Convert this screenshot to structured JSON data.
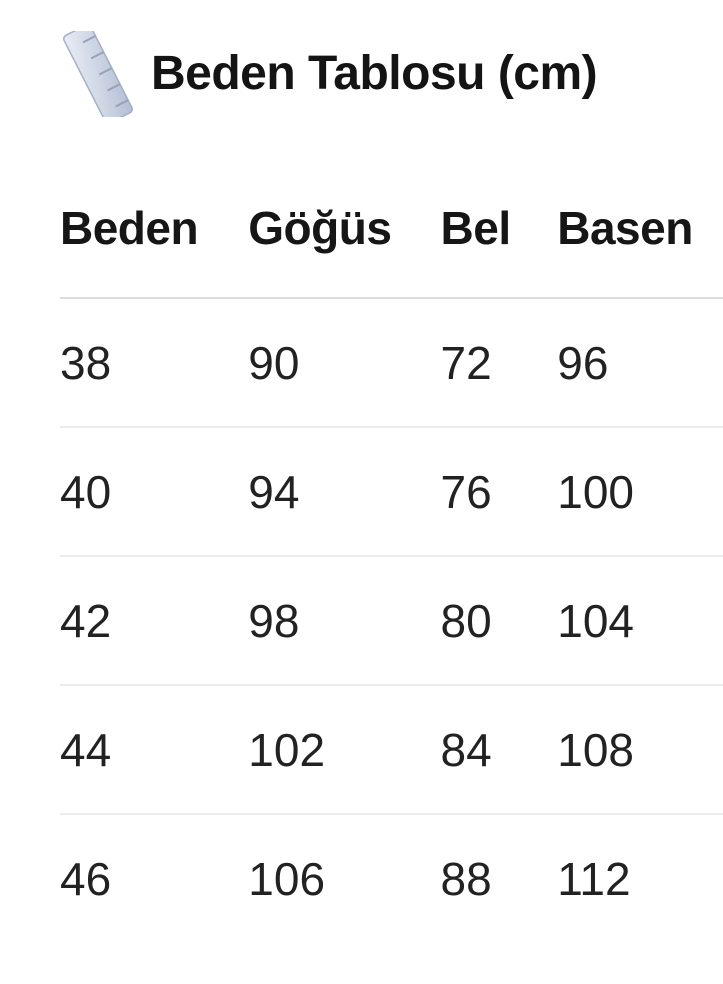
{
  "page": {
    "title": "Beden Tablosu (cm)",
    "title_icon": "straight-ruler-emoji"
  },
  "table": {
    "columns": [
      "Beden",
      "Göğüs",
      "Bel",
      "Basen"
    ],
    "rows": [
      [
        "38",
        "90",
        "72",
        "96"
      ],
      [
        "40",
        "94",
        "76",
        "100"
      ],
      [
        "42",
        "98",
        "80",
        "104"
      ],
      [
        "44",
        "102",
        "84",
        "108"
      ],
      [
        "46",
        "106",
        "88",
        "112"
      ]
    ]
  },
  "colors": {
    "background": "#ffffff",
    "text": "#1f1f1f",
    "header_divider": "#dcdcdc",
    "row_divider": "#ececec",
    "ruler_light": "#e8edf5",
    "ruler_dark": "#b6c0d4"
  }
}
